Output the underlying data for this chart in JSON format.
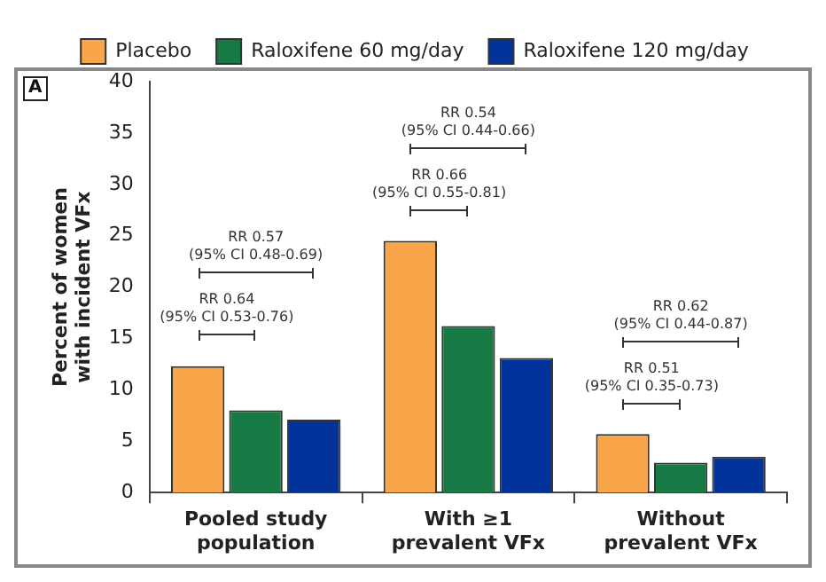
{
  "chart_data": {
    "type": "bar",
    "categories": [
      "Pooled study population",
      "With ≥1 prevalent VFx",
      "Without prevalent VFx"
    ],
    "series": [
      {
        "name": "Placebo",
        "color": "#f9a64a",
        "values": [
          12.3,
          24.5,
          5.7
        ]
      },
      {
        "name": "Raloxifene 60 mg/day",
        "color": "#177a45",
        "values": [
          8.0,
          16.2,
          2.9
        ]
      },
      {
        "name": "Raloxifene 120 mg/day",
        "color": "#02339a",
        "values": [
          7.1,
          13.1,
          3.5
        ]
      }
    ],
    "ylabel": "Percent of women with incident VFx",
    "ylim": [
      0,
      40
    ],
    "yticks": [
      0,
      5,
      10,
      15,
      20,
      25,
      30,
      35,
      40
    ],
    "grid": false,
    "legend": "top",
    "annotations": [
      "A",
      "RR 0.64 (95% CI 0.53-0.76)",
      "RR 0.57 (95% CI 0.48-0.69)",
      "RR 0.66 (95% CI 0.55-0.81)",
      "RR 0.54 (95% CI 0.44-0.66)",
      "RR 0.51 (95% CI 0.35-0.73)",
      "RR 0.62 (95% CI 0.44-0.87)"
    ]
  }
}
